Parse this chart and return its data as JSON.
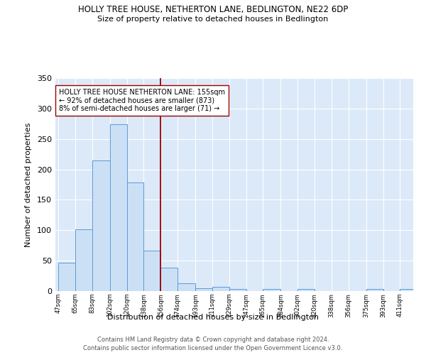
{
  "title": "HOLLY TREE HOUSE, NETHERTON LANE, BEDLINGTON, NE22 6DP",
  "subtitle": "Size of property relative to detached houses in Bedlington",
  "xlabel": "Distribution of detached houses by size in Bedlington",
  "ylabel": "Number of detached properties",
  "bar_edges": [
    47,
    65,
    83,
    102,
    120,
    138,
    156,
    174,
    193,
    211,
    229,
    247,
    265,
    284,
    302,
    320,
    338,
    356,
    375,
    393,
    411
  ],
  "bar_heights": [
    47,
    101,
    215,
    274,
    178,
    67,
    39,
    13,
    5,
    7,
    3,
    0,
    3,
    0,
    3,
    0,
    0,
    0,
    3,
    0,
    3
  ],
  "bar_color": "#cce0f5",
  "bar_edge_color": "#5b9bd5",
  "property_line_x": 156,
  "property_line_color": "#990000",
  "annotation_title": "HOLLY TREE HOUSE NETHERTON LANE: 155sqm",
  "annotation_line1": "← 92% of detached houses are smaller (873)",
  "annotation_line2": "8% of semi-detached houses are larger (71) →",
  "annotation_box_color": "#ffffff",
  "annotation_box_edge": "#990000",
  "ylim": [
    0,
    350
  ],
  "yticks": [
    0,
    50,
    100,
    150,
    200,
    250,
    300,
    350
  ],
  "footnote1": "Contains HM Land Registry data © Crown copyright and database right 2024.",
  "footnote2": "Contains public sector information licensed under the Open Government Licence v3.0.",
  "bg_color": "#dce9f8",
  "fig_bg_color": "#ffffff"
}
